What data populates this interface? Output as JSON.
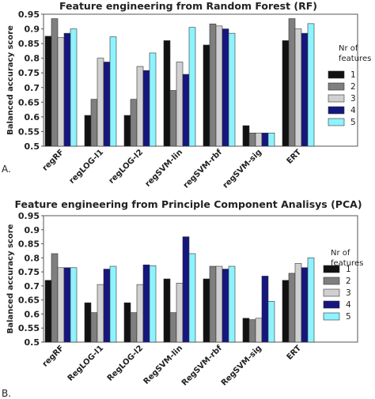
{
  "chart_data": [
    {
      "type": "bar",
      "title": "Feature engineering from Random Forest (RF)",
      "ylabel": "Balanced accuracy score",
      "xlabel": "",
      "panel_label": "A.",
      "ylim": [
        0.5,
        0.95
      ],
      "yticks": [
        "0.5",
        "0.55",
        "0.6",
        "0.65",
        "0.7",
        "0.75",
        "0.8",
        "0.85",
        "0.9",
        "0.95"
      ],
      "grid": false,
      "legend": {
        "title_line1": "Nr of",
        "title_line2": "features",
        "placement": "right"
      },
      "categories": [
        "regRF",
        "regLOG-l1",
        "regLOG-l2",
        "regSVM-lin",
        "regSVM-rbf",
        "regSVM-sig",
        "ERT"
      ],
      "series": [
        {
          "name": "1",
          "color": "#111111",
          "values": [
            0.875,
            0.605,
            0.605,
            0.86,
            0.845,
            0.57,
            0.86
          ]
        },
        {
          "name": "2",
          "color": "#7f7f7f",
          "values": [
            0.935,
            0.66,
            0.66,
            0.69,
            0.917,
            0.545,
            0.935
          ]
        },
        {
          "name": "3",
          "color": "#d0d0d0",
          "values": [
            0.87,
            0.8,
            0.772,
            0.787,
            0.91,
            0.545,
            0.9
          ]
        },
        {
          "name": "4",
          "color": "#161680",
          "values": [
            0.885,
            0.787,
            0.758,
            0.745,
            0.9,
            0.545,
            0.885
          ]
        },
        {
          "name": "5",
          "color": "#8ef3ff",
          "values": [
            0.9,
            0.873,
            0.818,
            0.905,
            0.885,
            0.545,
            0.918
          ]
        }
      ]
    },
    {
      "type": "bar",
      "title": "Feature engineering from Principle Component Analisys (PCA)",
      "ylabel": "Balanced accuracy score",
      "xlabel": "",
      "panel_label": "B.",
      "ylim": [
        0.5,
        0.95
      ],
      "yticks": [
        "0.5",
        "0.55",
        "0.6",
        "0.65",
        "0.7",
        "0.75",
        "0.8",
        "0.85",
        "0.9",
        "0.95"
      ],
      "grid": false,
      "legend": {
        "title_line1": "Nr of",
        "title_line2": "features",
        "placement": "right"
      },
      "categories": [
        "regRF",
        "RegLOG-l1",
        "RegLOG-l2",
        "RegSVM-lin",
        "RegSVM-rbf",
        "RegSVM-sig",
        "ERT"
      ],
      "series": [
        {
          "name": "1",
          "color": "#111111",
          "values": [
            0.72,
            0.64,
            0.64,
            0.725,
            0.725,
            0.585,
            0.72
          ]
        },
        {
          "name": "2",
          "color": "#7f7f7f",
          "values": [
            0.815,
            0.605,
            0.605,
            0.605,
            0.77,
            0.58,
            0.745
          ]
        },
        {
          "name": "3",
          "color": "#d0d0d0",
          "values": [
            0.765,
            0.705,
            0.705,
            0.71,
            0.77,
            0.585,
            0.78
          ]
        },
        {
          "name": "4",
          "color": "#161680",
          "values": [
            0.765,
            0.76,
            0.775,
            0.875,
            0.76,
            0.735,
            0.765
          ]
        },
        {
          "name": "5",
          "color": "#8ef3ff",
          "values": [
            0.765,
            0.77,
            0.772,
            0.815,
            0.77,
            0.645,
            0.8
          ]
        }
      ]
    }
  ]
}
